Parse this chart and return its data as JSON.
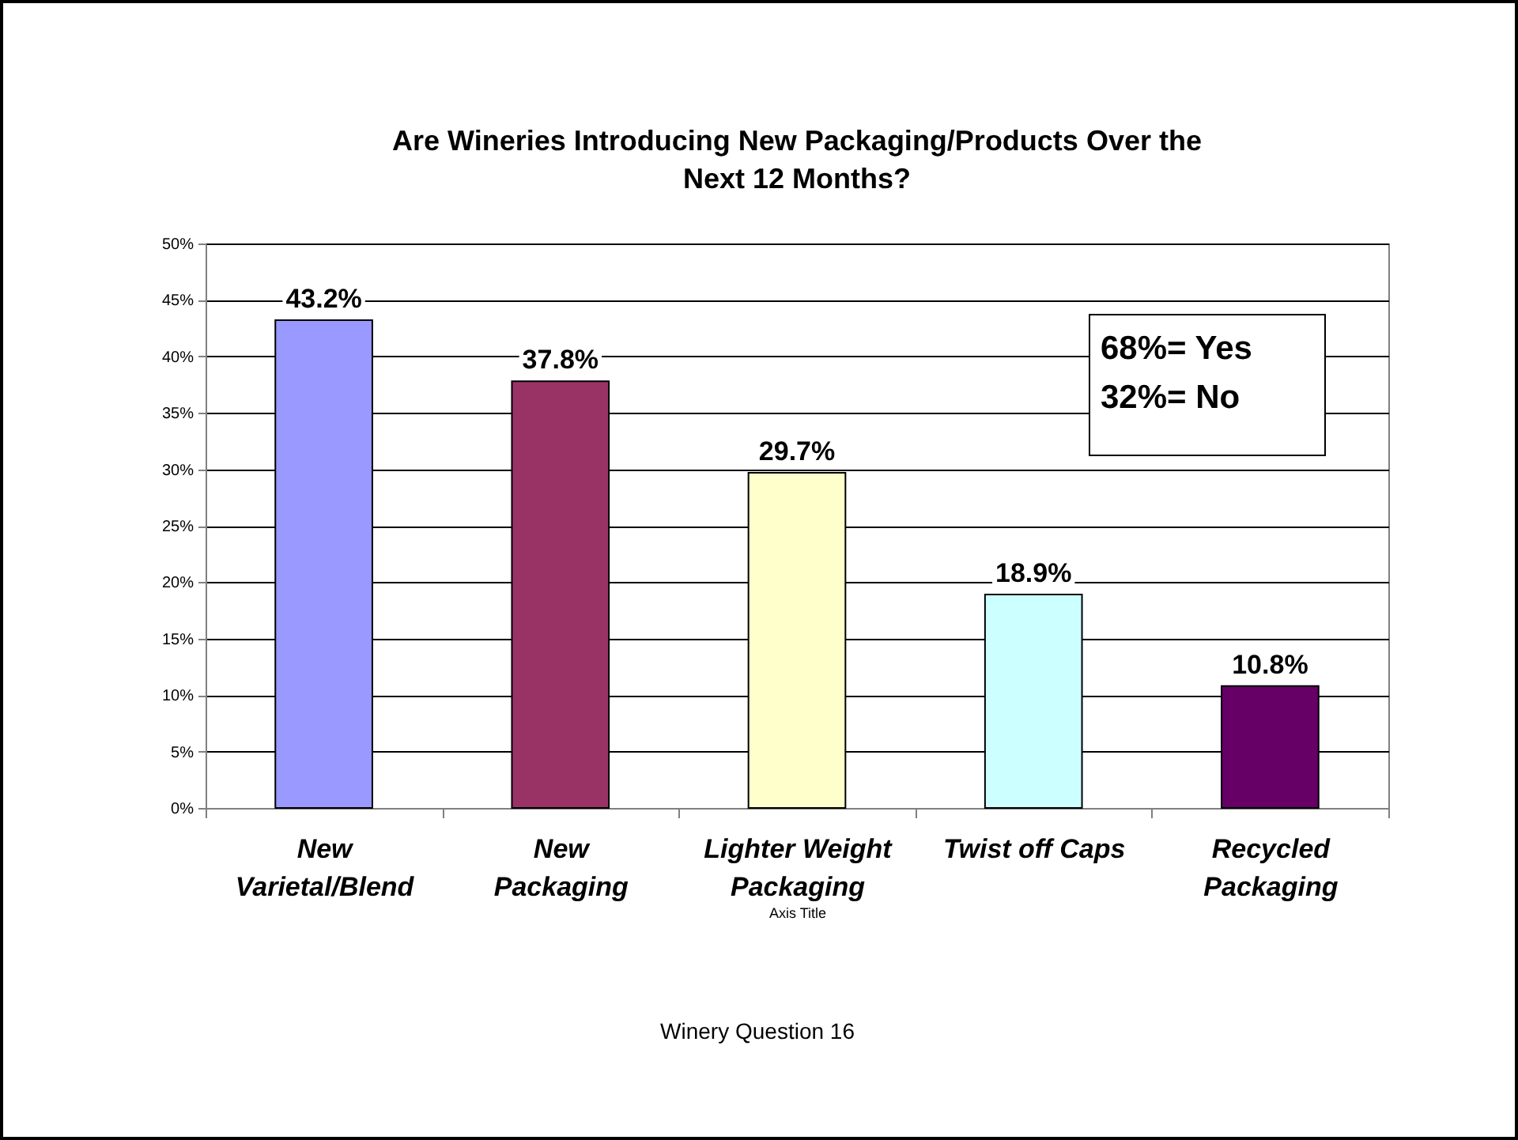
{
  "chart_data": {
    "type": "bar",
    "title": "Are Wineries Introducing New Packaging/Products Over the Next 12 Months?",
    "xlabel": "Axis Title",
    "categories": [
      "New Varietal/Blend",
      "New Packaging",
      "Lighter Weight Packaging",
      "Twist off Caps",
      "Recycled Packaging"
    ],
    "values": [
      43.2,
      37.8,
      29.7,
      18.9,
      10.8
    ],
    "colors": [
      "#9999ff",
      "#993366",
      "#ffffcc",
      "#ccffff",
      "#660066"
    ],
    "value_labels": [
      "43.2%",
      "37.8%",
      "29.7%",
      "18.9%",
      "10.8%"
    ],
    "ylim": [
      0,
      50
    ],
    "yticks": [
      {
        "value": 0,
        "label": "0%"
      },
      {
        "value": 5,
        "label": "5%"
      },
      {
        "value": 10,
        "label": "10%"
      },
      {
        "value": 15,
        "label": "15%"
      },
      {
        "value": 20,
        "label": "20%"
      },
      {
        "value": 25,
        "label": "25%"
      },
      {
        "value": 30,
        "label": "30%"
      },
      {
        "value": 35,
        "label": "35%"
      },
      {
        "value": 40,
        "label": "40%"
      },
      {
        "value": 45,
        "label": "45%"
      },
      {
        "value": 50,
        "label": "50%"
      }
    ],
    "grid": "y",
    "annotations": [
      "68%= Yes",
      "32%= No",
      "Winery Question 16"
    ]
  }
}
